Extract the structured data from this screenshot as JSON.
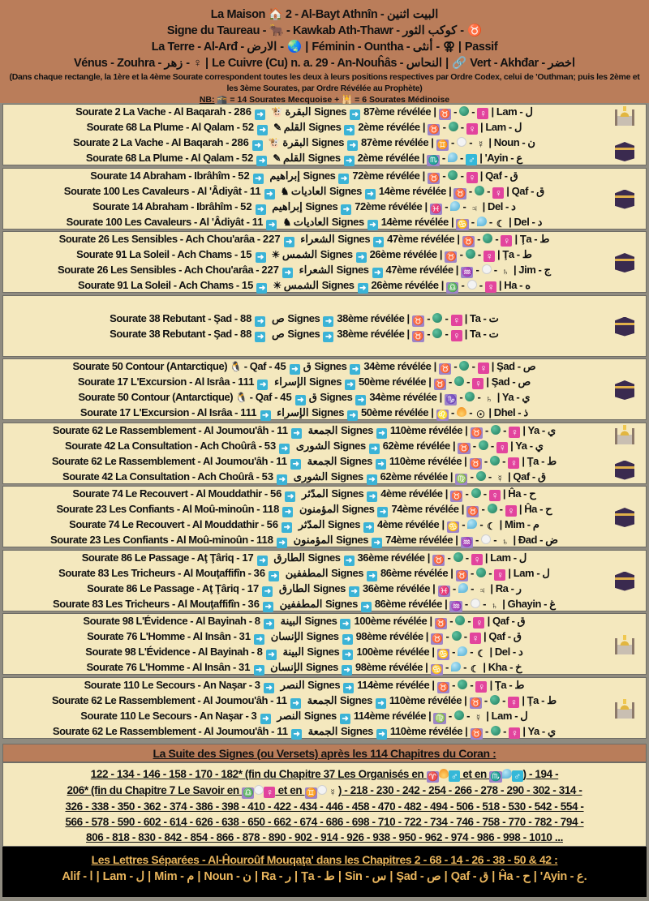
{
  "header": {
    "line1": "La Maison 🏠 2 - Al-Bayt Athnîn - البيت اثنين",
    "line2": "Signe du Taureau - 🐂 - Kawkab Ath-Thawr - كوكب الثور - ♉",
    "line3": "La Terre - Al-Arđ - الارض - 🌏 | Féminin - Ountha - أنثى - ⚢ | Passif",
    "line4": "Vénus - Zouhra - زهر - ♀ | Le Cuivre (Cu) n. a. 29 - An-Nouĥâs - النحاس | 🔗 Vert - Akhđar - اخضر",
    "note": "(Dans chaque rectangle, la 1ère et la 4ème Sourate correspondent toutes les deux à leurs positions respectives par Ordre Codex, celui de 'Outhman; puis les 2ème et les 3ème Sourates, par Ordre Révélée au Prophète)",
    "nb_label": "NB:",
    "nb_text": " 🕋 = 14 Sourates Mecquoise + 🕌 = 6 Sourates Médinoise"
  },
  "colors": {
    "header_bg": "#ba7d5a",
    "block_bg": "#f4e8be",
    "arrow": "#3bb3d6",
    "zodiac": "#9d84c8",
    "venus": "#e2449d",
    "mars": "#34b8d8",
    "letters_text": "#e9b55c"
  },
  "blocks": [
    {
      "badges": [
        "mosque",
        "kaaba"
      ],
      "rows": [
        {
          "name": "Sourate 2 La Vache - Al Baqarah - البقرة",
          "icon": "🐮",
          "signes": "286 Signes",
          "rev": "87ème révélée",
          "z": "♉",
          "el": "earth",
          "p": "♀",
          "letter": "Lam - ل"
        },
        {
          "name": "Sourate 68 La Plume - Al Qalam - القلم",
          "icon": "✎",
          "signes": "52 Signes",
          "rev": "2ème révélée",
          "z": "♉",
          "el": "earth",
          "p": "♀",
          "letter": "Lam - ل"
        },
        {
          "name": "Sourate 2 La Vache - Al Baqarah - البقرة",
          "icon": "🐮",
          "signes": "286 Signes",
          "rev": "87ème révélée",
          "z": "♊",
          "el": "air",
          "p": "☿",
          "letter": "Noun - ن"
        },
        {
          "name": "Sourate 68 La Plume - Al Qalam - القلم",
          "icon": "✎",
          "signes": "52 Signes",
          "rev": "2ème révélée",
          "z": "♏",
          "el": "water",
          "p": "♂",
          "letter": "'Ayin - ع"
        }
      ]
    },
    {
      "badges": [
        "kaaba"
      ],
      "rows": [
        {
          "name": "Sourate 14 Abraham - Ibrâhîm - إبراهيم",
          "icon": "",
          "signes": "52 Signes",
          "rev": "72ème révélée",
          "z": "♉",
          "el": "earth",
          "p": "♀",
          "letter": "Qaf - ق"
        },
        {
          "name": "Sourate 100 Les Cavaleurs - Al 'Âdiyât - العاديات",
          "icon": "♞",
          "signes": "11 Signes",
          "rev": "14ème révélée",
          "z": "♉",
          "el": "earth",
          "p": "♀",
          "letter": "Qaf - ق"
        },
        {
          "name": "Sourate 14 Abraham - Ibrâhîm - إبراهيم",
          "icon": "",
          "signes": "52 Signes",
          "rev": "72ème révélée",
          "z": "♓",
          "el": "water",
          "p": "♃",
          "letter": "Del - د"
        },
        {
          "name": "Sourate 100 Les Cavaleurs - Al 'Âdiyât - العاديات",
          "icon": "♞",
          "signes": "11 Signes",
          "rev": "14ème révélée",
          "z": "♋",
          "el": "water",
          "p": "☾",
          "letter": "Del - د"
        }
      ]
    },
    {
      "badges": [
        "kaaba"
      ],
      "rows": [
        {
          "name": "Sourate 26 Les Sensibles - Ach Chou'arâa - الشعراء",
          "icon": "",
          "signes": "227 Signes",
          "rev": "47ème révélée",
          "z": "♉",
          "el": "earth",
          "p": "♀",
          "letter": "Ţa - ط"
        },
        {
          "name": "Sourate 91 La Soleil - Ach Chams - الشمس",
          "icon": "☀",
          "signes": "15 Signes",
          "rev": "26ème révélée",
          "z": "♉",
          "el": "earth",
          "p": "♀",
          "letter": "Ţa - ط"
        },
        {
          "name": "Sourate 26 Les Sensibles - Ach Chou'arâa - الشعراء",
          "icon": "",
          "signes": "227 Signes",
          "rev": "47ème révélée",
          "z": "♒",
          "el": "air",
          "p": "♄",
          "letter": "Jim - ج"
        },
        {
          "name": "Sourate 91 La Soleil - Ach Chams - الشمس",
          "icon": "☀",
          "signes": "15 Signes",
          "rev": "26ème révélée",
          "z": "♎",
          "el": "air",
          "p": "♀",
          "letter": "Ha - ه"
        }
      ]
    },
    {
      "badges": [
        "kaaba"
      ],
      "rows": [
        {
          "name": "Sourate 38 Rebutant - Şad - ص",
          "icon": "",
          "signes": "88 Signes",
          "rev": "38ème révélée",
          "z": "♉",
          "el": "earth",
          "p": "♀",
          "letter": "Ta - ت"
        },
        {
          "name": "Sourate 38 Rebutant - Şad - ص",
          "icon": "",
          "signes": "88 Signes",
          "rev": "38ème révélée",
          "z": "♉",
          "el": "earth",
          "p": "♀",
          "letter": "Ta - ت"
        }
      ]
    },
    {
      "badges": [
        "kaaba"
      ],
      "rows": [
        {
          "name": "Sourate 50 Contour (Antarctique)",
          "icon": "🐧",
          "tail": "- Qaf - ق",
          "signes": "45 Signes",
          "rev": "34ème révélée",
          "z": "♉",
          "el": "earth",
          "p": "♀",
          "letter": "Şad - ص"
        },
        {
          "name": "Sourate 17 L'Excursion - Al Isrâa - الإسراء",
          "icon": "",
          "signes": "111 Signes",
          "rev": "50ème révélée",
          "z": "♉",
          "el": "earth",
          "p": "♀",
          "letter": "Şad - ص"
        },
        {
          "name": "Sourate 50 Contour (Antarctique)",
          "icon": "🐧",
          "tail": "- Qaf - ق",
          "signes": "45 Signes",
          "rev": "34ème révélée",
          "z": "♑",
          "el": "earth",
          "p": "♄",
          "letter": "Ya - ي"
        },
        {
          "name": "Sourate 17 L'Excursion - Al Isrâa - الإسراء",
          "icon": "",
          "signes": "111 Signes",
          "rev": "50ème révélée",
          "z": "♌",
          "el": "fire",
          "p": "☉",
          "letter": "Dhel - ذ"
        }
      ]
    },
    {
      "badges": [
        "mosque",
        "kaaba"
      ],
      "rows": [
        {
          "name": "Sourate 62 Le Rassemblement - Al Joumou'âh - الجمعة",
          "icon": "",
          "signes": "11 Signes",
          "rev": "110ème révélée",
          "z": "♉",
          "el": "earth",
          "p": "♀",
          "letter": "Ya - ي"
        },
        {
          "name": "Sourate 42 La Consultation - Ach Choûrâ - الشورى",
          "icon": "",
          "signes": "53 Signes",
          "rev": "62ème révélée",
          "z": "♉",
          "el": "earth",
          "p": "♀",
          "letter": "Ya - ي"
        },
        {
          "name": "Sourate 62 Le Rassemblement - Al Joumou'âh - الجمعة",
          "icon": "",
          "signes": "11 Signes",
          "rev": "110ème révélée",
          "z": "♉",
          "el": "earth",
          "p": "♀",
          "letter": "Ţa - ط"
        },
        {
          "name": "Sourate 42 La Consultation - Ach Choûrâ - الشورى",
          "icon": "",
          "signes": "53 Signes",
          "rev": "62ème révélée",
          "z": "♍",
          "el": "earth",
          "p": "☿",
          "letter": "Qaf - ق"
        }
      ]
    },
    {
      "badges": [
        "kaaba"
      ],
      "rows": [
        {
          "name": "Sourate 74 Le Recouvert - Al Mouddathir - المدّثر",
          "icon": "",
          "signes": "56 Signes",
          "rev": "4ème révélée",
          "z": "♉",
          "el": "earth",
          "p": "♀",
          "letter": "Ĥa - ح"
        },
        {
          "name": "Sourate 23 Les Confiants - Al Moû-minoûn - المؤمنون",
          "icon": "",
          "signes": "118 Signes",
          "rev": "74ème révélée",
          "z": "♉",
          "el": "earth",
          "p": "♀",
          "letter": "Ĥa - ح"
        },
        {
          "name": "Sourate 74 Le Recouvert - Al Mouddathir - المدّثر",
          "icon": "",
          "signes": "56 Signes",
          "rev": "4ème révélée",
          "z": "♋",
          "el": "water",
          "p": "☾",
          "letter": "Mim - م"
        },
        {
          "name": "Sourate 23 Les Confiants - Al Moû-minoûn - المؤمنون",
          "icon": "",
          "signes": "118 Signes",
          "rev": "74ème révélée",
          "z": "♒",
          "el": "air",
          "p": "♄",
          "letter": "Đad - ض"
        }
      ]
    },
    {
      "badges": [
        "kaaba"
      ],
      "rows": [
        {
          "name": "Sourate 86 Le Passage - Aţ Ţâriq - الطارق",
          "icon": "",
          "signes": "17 Signes",
          "rev": "36ème révélée",
          "z": "♉",
          "el": "earth",
          "p": "♀",
          "letter": "Lam - ل"
        },
        {
          "name": "Sourate 83 Les Tricheurs - Al Mouţaffifîn - المطففين",
          "icon": "",
          "signes": "36 Signes",
          "rev": "86ème révélée",
          "z": "♉",
          "el": "earth",
          "p": "♀",
          "letter": "Lam - ل"
        },
        {
          "name": "Sourate 86 Le Passage - Aţ Ţâriq - الطارق",
          "icon": "",
          "signes": "17 Signes",
          "rev": "36ème révélée",
          "z": "♓",
          "el": "water",
          "p": "♃",
          "letter": "Ra - ر"
        },
        {
          "name": "Sourate 83 Les Tricheurs - Al Mouţaffifîn - المطففين",
          "icon": "",
          "signes": "36 Signes",
          "rev": "86ème révélée",
          "z": "♒",
          "el": "air",
          "p": "♄",
          "letter": "Ghayin - غ"
        }
      ]
    },
    {
      "badges": [
        "mosque"
      ],
      "rows": [
        {
          "name": "Sourate 98 L'Évidence - Al Bayinah - البينة",
          "icon": "",
          "signes": "8 Signes",
          "rev": "100ème révélée",
          "z": "♉",
          "el": "earth",
          "p": "♀",
          "letter": "Qaf - ق"
        },
        {
          "name": "Sourate 76 L'Homme - Al Insân - الإنسان",
          "icon": "",
          "signes": "31 Signes",
          "rev": "98ème révélée",
          "z": "♉",
          "el": "earth",
          "p": "♀",
          "letter": "Qaf - ق"
        },
        {
          "name": "Sourate 98 L'Évidence - Al Bayinah - البينة",
          "icon": "",
          "signes": "8 Signes",
          "rev": "100ème révélée",
          "z": "♋",
          "el": "water",
          "p": "☾",
          "letter": "Del - د"
        },
        {
          "name": "Sourate 76 L'Homme - Al Insân - الإنسان",
          "icon": "",
          "signes": "31 Signes",
          "rev": "98ème révélée",
          "z": "♋",
          "el": "water",
          "p": "☾",
          "letter": "Kha - خ"
        }
      ]
    },
    {
      "badges": [
        "mosque"
      ],
      "rows": [
        {
          "name": "Sourate 110 Le Secours - An Naşar - النصر",
          "icon": "",
          "signes": "3 Signes",
          "rev": "114ème révélée",
          "z": "♉",
          "el": "earth",
          "p": "♀",
          "letter": "Ţa - ط"
        },
        {
          "name": "Sourate 62 Le Rassemblement - Al Joumou'âh - الجمعة",
          "icon": "",
          "signes": "11 Signes",
          "rev": "110ème révélée",
          "z": "♉",
          "el": "earth",
          "p": "♀",
          "letter": "Ţa - ط"
        },
        {
          "name": "Sourate 110 Le Secours - An Naşar - النصر",
          "icon": "",
          "signes": "3 Signes",
          "rev": "114ème révélée",
          "z": "♍",
          "el": "earth",
          "p": "☿",
          "letter": "Lam - ل"
        },
        {
          "name": "Sourate 62 Le Rassemblement - Al Joumou'âh - الجمعة",
          "icon": "",
          "signes": "11 Signes",
          "rev": "110ème révélée",
          "z": "♉",
          "el": "earth",
          "p": "♀",
          "letter": "Ya - ي"
        }
      ]
    }
  ],
  "suite": {
    "title": "La Suite des Signes (ou Versets) après les 114 Chapitres du Coran :",
    "lines": [
      [
        "122 - 134 - 146 - 158 - 170 - 182* (fin du Chapitre 37 Les Organisés en ",
        {
          "z": "♈"
        },
        {
          "el": "fire"
        },
        {
          "p": "♂"
        },
        " et en ",
        {
          "z": "♏"
        },
        {
          "el": "water"
        },
        {
          "p": "♂"
        },
        ") - 194 -"
      ],
      [
        "206* (fin du Chapitre 7 Le Savoir en ",
        {
          "z": "♎"
        },
        {
          "el": "air"
        },
        {
          "p": "♀"
        },
        " et en ",
        {
          "z": "♊"
        },
        {
          "el": "air"
        },
        {
          "p": "☿"
        },
        ") - 218 - 230 - 242 - 254 - 266 - 278 - 290 - 302 - 314 -"
      ],
      [
        "326 - 338 - 350 - 362 - 374 - 386 - 398 - 410 - 422 - 434 - 446 - 458 - 470 - 482 - 494 - 506 - 518 - 530 - 542 - 554 -"
      ],
      [
        "566 - 578 - 590 - 602 - 614 - 626 - 638 - 650 - 662 - 674 - 686 - 698 - 710 - 722 - 734 - 746 - 758 - 770 - 782 - 794 -"
      ],
      [
        "806 - 818 - 830 - 842 - 854 - 866 - 878 - 890 - 902 - 914 - 926 - 938 - 950 - 962 - 974 - 986 - 998 - 1010 ..."
      ]
    ]
  },
  "letters": {
    "title": "Les Lettres Séparées - Al-Ĥouroûf Mouqaţa' dans les Chapitres 2 - 68 - 14 - 26 - 38 - 50 & 42 :",
    "values": "Alif - ا | Lam - ل | Mim - م | Noun - ن | Ra - ر | Ţa - ط | Sin - س | Şad - ص | Qaf - ق | Ĥa - ح | 'Ayin - ع."
  }
}
